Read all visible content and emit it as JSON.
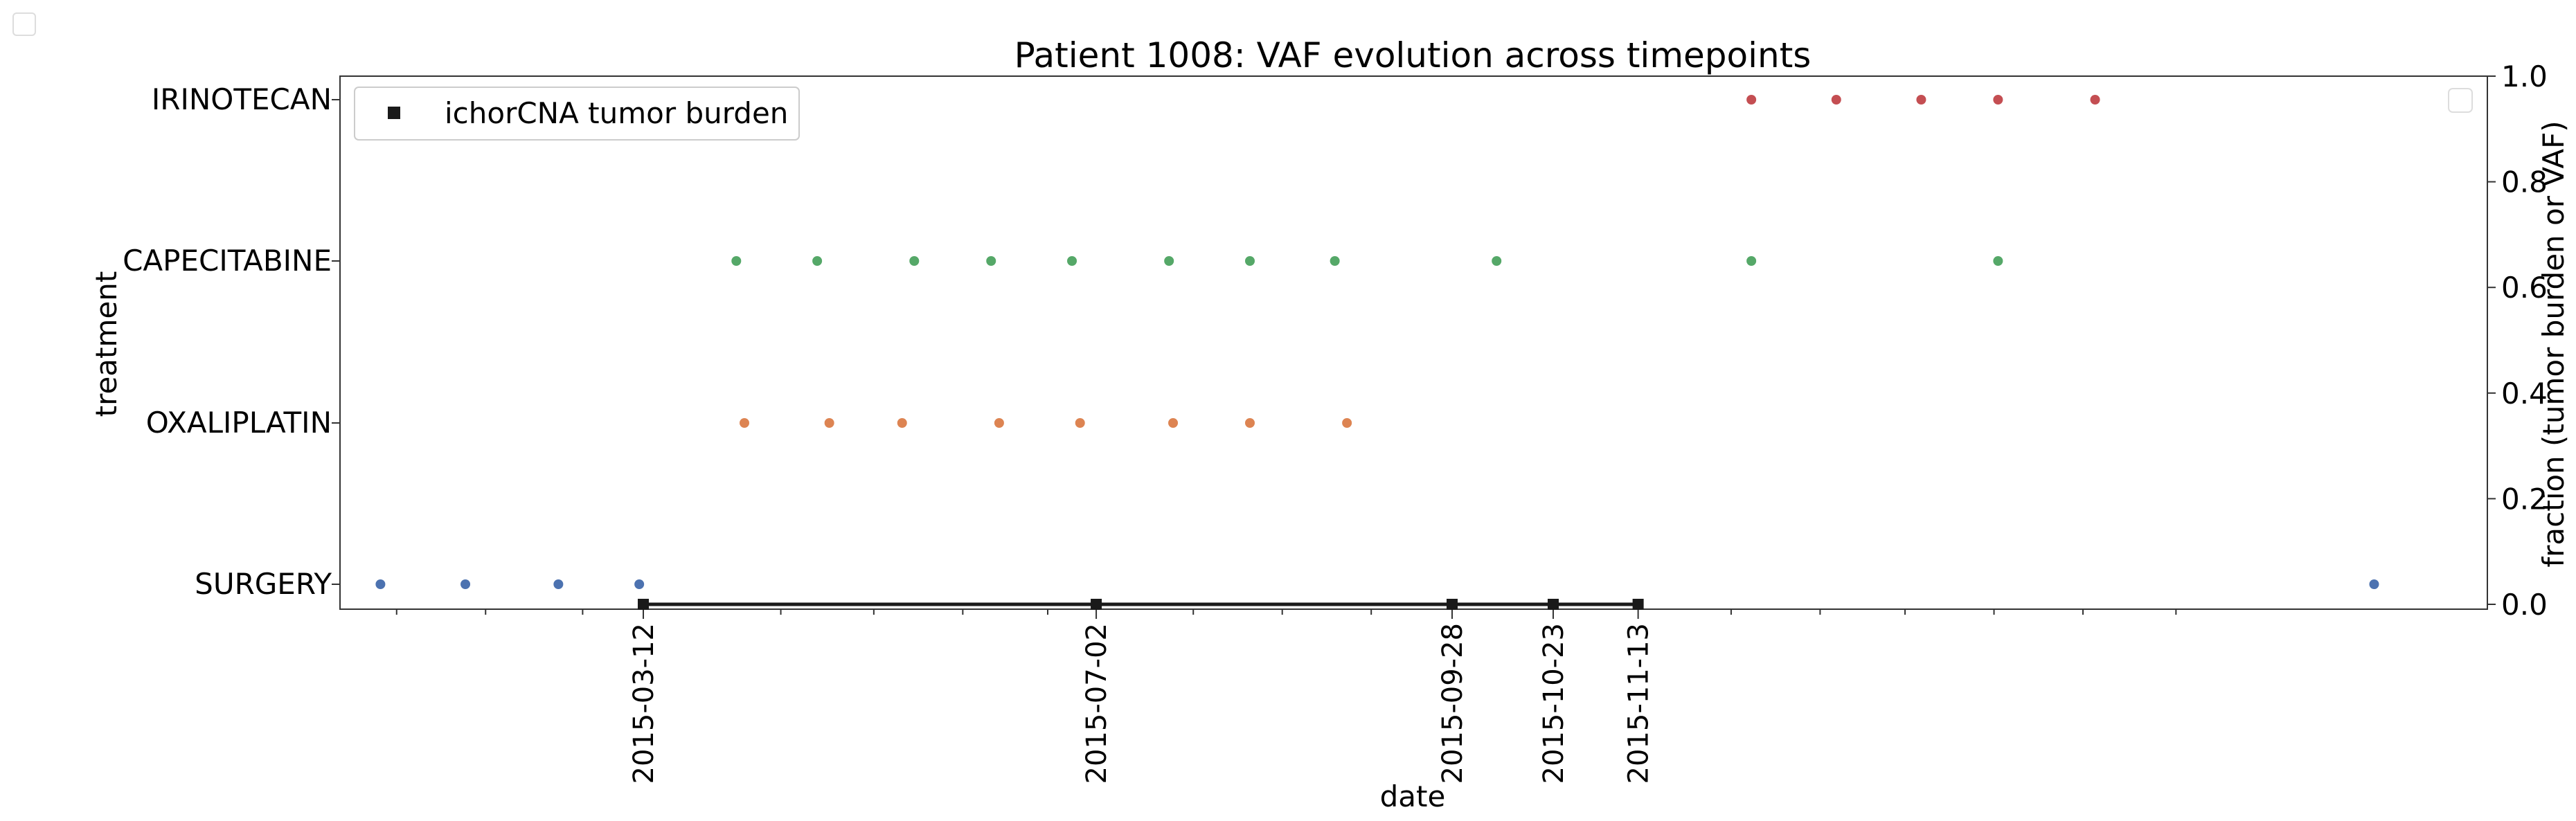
{
  "chart_data": {
    "type": "scatter",
    "title": "Patient 1008: VAF evolution across timepoints",
    "xlabel": "date",
    "ylabel_left": "treatment",
    "ylabel_right": "fraction (tumor burden or VAF)",
    "x_ticks_labeled": [
      "2015-03-12",
      "2015-07-02",
      "2015-09-28",
      "2015-10-23",
      "2015-11-13"
    ],
    "x_minor_ticks": [
      "2015-01-10",
      "2015-02-01",
      "2015-02-25",
      "2015-04-15",
      "2015-05-08",
      "2015-05-30",
      "2015-06-20",
      "2015-07-26",
      "2015-08-17",
      "2015-09-08",
      "2015-12-06",
      "2015-12-28",
      "2016-01-18",
      "2016-02-09",
      "2016-03-02",
      "2016-03-25"
    ],
    "x_range": [
      "2014-12-27",
      "2016-06-10"
    ],
    "left_y_categories": [
      "SURGERY",
      "OXALIPLATIN",
      "CAPECITABINE",
      "IRINOTECAN"
    ],
    "right_y_ticks": [
      "0.0",
      "0.2",
      "0.4",
      "0.6",
      "0.8",
      "1.0"
    ],
    "right_ylim": [
      0,
      1.0
    ],
    "legend": {
      "position": "top-left",
      "entries": [
        {
          "label": "ichorCNA tumor burden",
          "marker": "square",
          "color": "#1a1a1a"
        }
      ]
    },
    "empty_legend_position": "top-right",
    "series": [
      {
        "name": "ichorCNA tumor burden",
        "axis": "right",
        "style": "line+square",
        "color": "#1a1a1a",
        "points": [
          {
            "x": "2015-03-12",
            "y": 0.0
          },
          {
            "x": "2015-07-02",
            "y": 0.0
          },
          {
            "x": "2015-09-28",
            "y": 0.0
          },
          {
            "x": "2015-10-23",
            "y": 0.0
          },
          {
            "x": "2015-11-13",
            "y": 0.0
          }
        ]
      },
      {
        "category": "SURGERY",
        "axis": "left",
        "style": "point",
        "color": "#4c72b0",
        "x": [
          "2015-01-06",
          "2015-01-27",
          "2015-02-19",
          "2015-03-11",
          "2016-05-13"
        ]
      },
      {
        "category": "OXALIPLATIN",
        "axis": "left",
        "style": "point",
        "color": "#dd8452",
        "x": [
          "2015-04-06",
          "2015-04-27",
          "2015-05-15",
          "2015-06-08",
          "2015-06-28",
          "2015-07-21",
          "2015-08-09",
          "2015-09-02"
        ]
      },
      {
        "category": "CAPECITABINE",
        "axis": "left",
        "style": "point",
        "color": "#55a868",
        "x": [
          "2015-04-04",
          "2015-04-24",
          "2015-05-18",
          "2015-06-06",
          "2015-06-26",
          "2015-07-20",
          "2015-08-09",
          "2015-08-30",
          "2015-10-09",
          "2015-12-11",
          "2016-02-10"
        ]
      },
      {
        "category": "IRINOTECAN",
        "axis": "left",
        "style": "point",
        "color": "#c44e52",
        "x": [
          "2015-12-11",
          "2016-01-01",
          "2016-01-22",
          "2016-02-10",
          "2016-03-05"
        ]
      }
    ]
  }
}
